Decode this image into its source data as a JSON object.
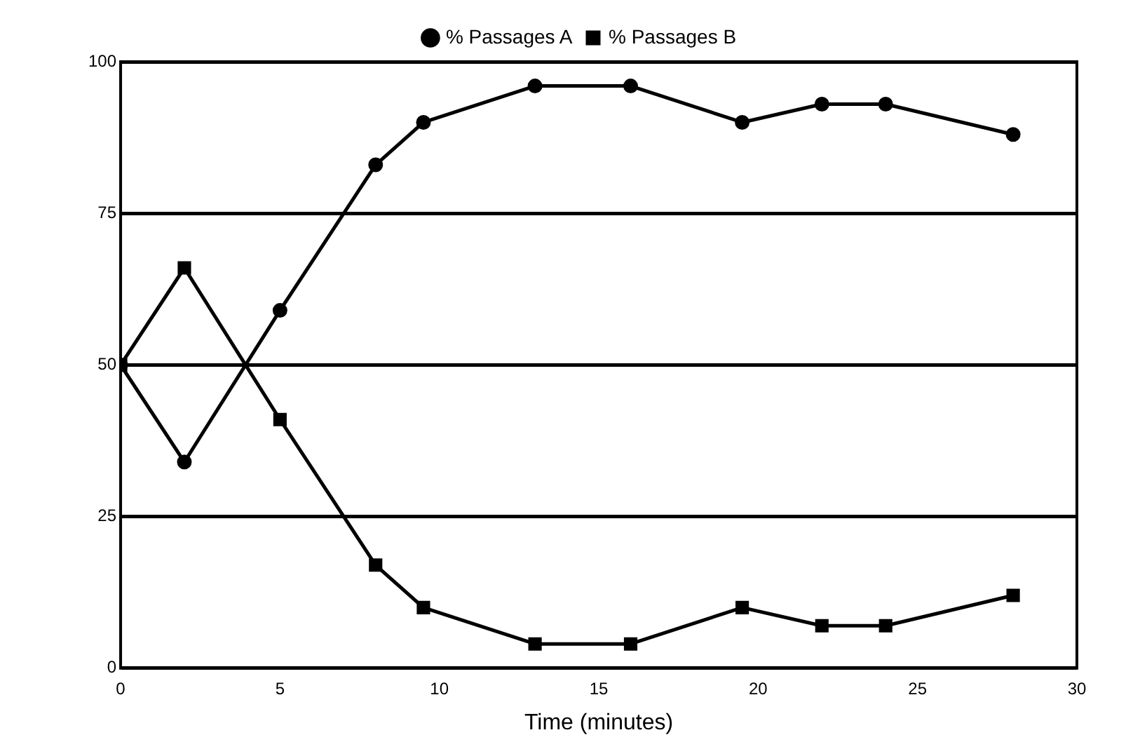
{
  "chart_data": {
    "type": "line",
    "xlabel": "Time (minutes)",
    "xlim": [
      0,
      30
    ],
    "xticks": [
      0,
      5,
      10,
      15,
      20,
      25,
      30
    ],
    "ylim": [
      0,
      100
    ],
    "yticks": [
      0,
      25,
      50,
      75,
      100
    ],
    "grid": "y",
    "legend": "top",
    "line_style": "solid",
    "series": [
      {
        "name": "% Passages A",
        "color": "#000000",
        "marker": "circle",
        "x": [
          0,
          2,
          5,
          8,
          9.5,
          13,
          16,
          19.5,
          22,
          24,
          28
        ],
        "values": [
          50,
          34,
          59,
          83,
          90,
          96,
          96,
          90,
          93,
          93,
          88
        ]
      },
      {
        "name": "% Passages B",
        "color": "#000000",
        "marker": "square",
        "x": [
          0,
          2,
          5,
          8,
          9.5,
          13,
          16,
          19.5,
          22,
          24,
          28
        ],
        "values": [
          50,
          66,
          41,
          17,
          10,
          4,
          4,
          10,
          7,
          7,
          12
        ]
      }
    ]
  }
}
